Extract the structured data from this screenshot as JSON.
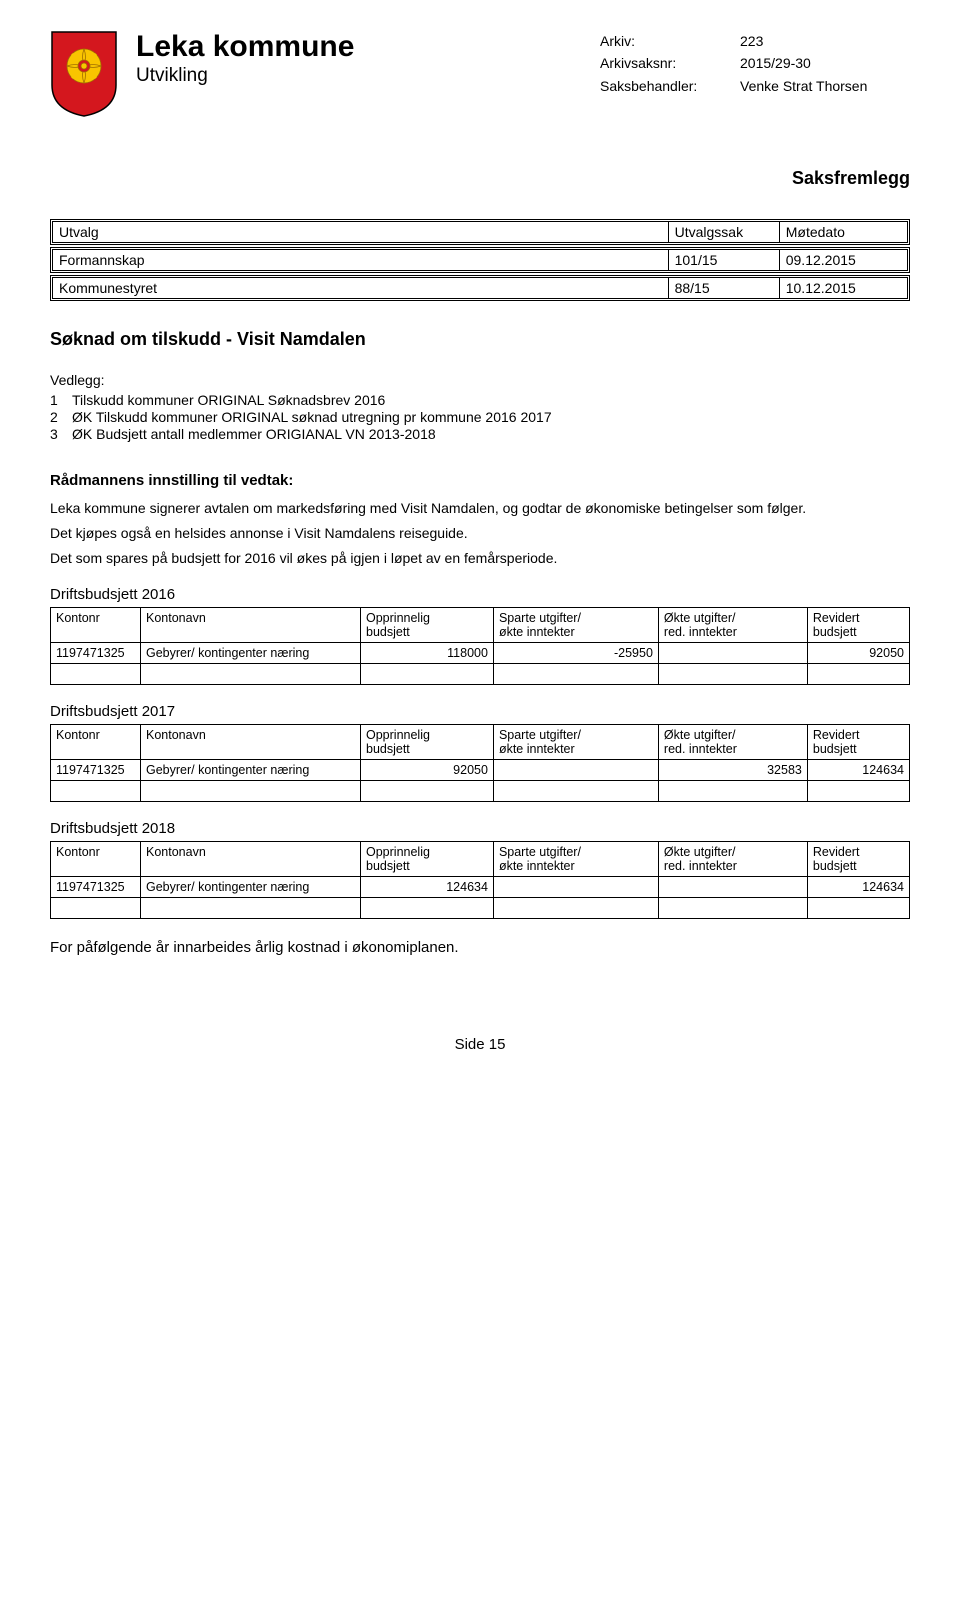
{
  "header": {
    "org": "Leka kommune",
    "dept": "Utvikling",
    "crest": {
      "shield_fill": "#d4171e",
      "figure_fill": "#f9c400"
    },
    "meta": {
      "arkiv_label": "Arkiv:",
      "arkiv_value": "223",
      "arkivsaksnr_label": "Arkivsaksnr:",
      "arkivsaksnr_value": "2015/29-30",
      "saksbehandler_label": "Saksbehandler:",
      "saksbehandler_value": "Venke Strat Thorsen"
    }
  },
  "saksfremlegg": "Saksfremlegg",
  "utvalg_table": {
    "headers": {
      "utvalg": "Utvalg",
      "sak": "Utvalgssak",
      "dato": "Møtedato"
    },
    "rows": [
      {
        "utvalg": "Formannskap",
        "sak": "101/15",
        "dato": "09.12.2015"
      },
      {
        "utvalg": "Kommunestyret",
        "sak": "88/15",
        "dato": "10.12.2015"
      }
    ]
  },
  "doc_title": "Søknad om tilskudd - Visit Namdalen",
  "vedlegg": {
    "label": "Vedlegg:",
    "items": [
      "Tilskudd kommuner ORIGINAL Søknadsbrev 2016",
      "ØK Tilskudd kommuner ORIGINAL søknad utregning pr kommune 2016 2017",
      "ØK Budsjett antall medlemmer ORIGIANAL VN 2013-2018"
    ]
  },
  "innstilling": {
    "heading": "Rådmannens innstilling til vedtak:",
    "p1": "Leka kommune signerer avtalen om markedsføring med Visit Namdalen, og godtar de økonomiske betingelser som følger.",
    "p2": "Det kjøpes også en helsides annonse i Visit Namdalens reiseguide.",
    "p3": "Det som spares på budsjett for 2016 vil økes på igjen i løpet av en femårsperiode."
  },
  "budget_headers": {
    "kontonr": "Kontonr",
    "kontonavn": "Kontonavn",
    "opprinnelig": "Opprinnelig budsjett",
    "sparte": "Sparte utgifter/ økte inntekter",
    "okte": "Økte utgifter/ red. inntekter",
    "revidert": "Revidert budsjett"
  },
  "budgets": [
    {
      "title": "Driftsbudsjett 2016",
      "rows": [
        {
          "kontonr": "1197471325",
          "kontonavn": "Gebyrer/ kontingenter næring",
          "opprinnelig": "118000",
          "sparte": "-25950",
          "okte": "",
          "revidert": "92050"
        }
      ]
    },
    {
      "title": "Driftsbudsjett 2017",
      "rows": [
        {
          "kontonr": "1197471325",
          "kontonavn": "Gebyrer/ kontingenter næring",
          "opprinnelig": "92050",
          "sparte": "",
          "okte": "32583",
          "revidert": "124634"
        }
      ]
    },
    {
      "title": "Driftsbudsjett 2018",
      "rows": [
        {
          "kontonr": "1197471325",
          "kontonavn": "Gebyrer/ kontingenter næring",
          "opprinnelig": "124634",
          "sparte": "",
          "okte": "",
          "revidert": "124634"
        }
      ]
    }
  ],
  "footer_note": "For påfølgende år innarbeides årlig kostnad i økonomiplanen.",
  "page_number": "Side 15"
}
